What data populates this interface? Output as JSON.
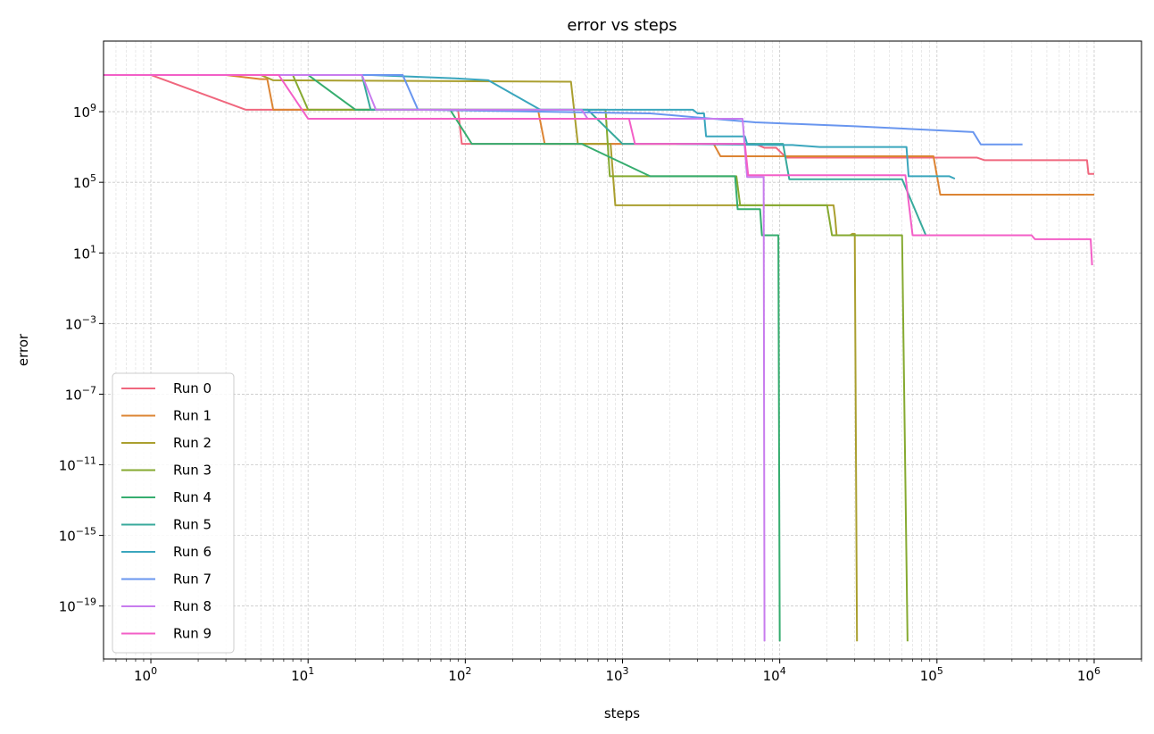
{
  "chart_data": {
    "type": "line",
    "title": "error vs steps",
    "xlabel": "steps",
    "ylabel": "error",
    "xscale": "log",
    "yscale": "log",
    "xlim": [
      0.5,
      2000000
    ],
    "ylim": [
      1e-22,
      10000000000000.0
    ],
    "x_ticks": [
      {
        "value": 1,
        "mant": "10",
        "exp": "0"
      },
      {
        "value": 10,
        "mant": "10",
        "exp": "1"
      },
      {
        "value": 100,
        "mant": "10",
        "exp": "2"
      },
      {
        "value": 1000,
        "mant": "10",
        "exp": "3"
      },
      {
        "value": 10000,
        "mant": "10",
        "exp": "4"
      },
      {
        "value": 100000,
        "mant": "10",
        "exp": "5"
      },
      {
        "value": 1000000,
        "mant": "10",
        "exp": "6"
      }
    ],
    "y_ticks": [
      {
        "value": 1000000000.0,
        "mant": "10",
        "exp": "9"
      },
      {
        "value": 100000.0,
        "mant": "10",
        "exp": "5"
      },
      {
        "value": 10,
        "mant": "10",
        "exp": "1"
      },
      {
        "value": 0.001,
        "mant": "10",
        "exp": "−3"
      },
      {
        "value": 1e-07,
        "mant": "10",
        "exp": "−7"
      },
      {
        "value": 1e-11,
        "mant": "10",
        "exp": "−11"
      },
      {
        "value": 1e-15,
        "mant": "10",
        "exp": "−15"
      },
      {
        "value": 1e-19,
        "mant": "10",
        "exp": "−19"
      }
    ],
    "grid": true,
    "legend_position": "lower-left",
    "series": [
      {
        "name": "Run 0",
        "color": "#f0677e",
        "points": [
          [
            0.5,
            120000000000.0
          ],
          [
            1,
            120000000000.0
          ],
          [
            4,
            1300000000.0
          ],
          [
            90,
            1300000000.0
          ],
          [
            95,
            15000000.0
          ],
          [
            3000,
            15000000.0
          ],
          [
            7000,
            15000000.0
          ],
          [
            8000,
            9000000.0
          ],
          [
            9500,
            9000000.0
          ],
          [
            11000,
            2500000.0
          ],
          [
            180000,
            2500000.0
          ],
          [
            200000,
            1800000.0
          ],
          [
            900000,
            1800000.0
          ],
          [
            920000,
            300000.0
          ],
          [
            1000000,
            300000.0
          ]
        ]
      },
      {
        "name": "Run 1",
        "color": "#dc8433",
        "points": [
          [
            0.5,
            120000000000.0
          ],
          [
            3,
            120000000000.0
          ],
          [
            5,
            70000000000.0
          ],
          [
            5.5,
            70000000000.0
          ],
          [
            6,
            1300000000.0
          ],
          [
            290,
            1300000000.0
          ],
          [
            320,
            15000000.0
          ],
          [
            3800,
            15000000.0
          ],
          [
            4200,
            3000000.0
          ],
          [
            95000,
            3000000.0
          ],
          [
            105000,
            20000.0
          ],
          [
            1000000,
            20000.0
          ]
        ]
      },
      {
        "name": "Run 2",
        "color": "#aa9f2f",
        "points": [
          [
            0.5,
            120000000000.0
          ],
          [
            5,
            120000000000.0
          ],
          [
            6,
            60000000000.0
          ],
          [
            470,
            50000000000.0
          ],
          [
            520,
            15000000.0
          ],
          [
            840,
            15000000.0
          ],
          [
            900,
            5000.0
          ],
          [
            5500,
            5000.0
          ],
          [
            22000,
            5000.0
          ],
          [
            22500,
            1000.0
          ],
          [
            23000,
            100.0
          ],
          [
            28000,
            100.0
          ],
          [
            29000,
            120.0
          ],
          [
            30000,
            120.0
          ],
          [
            31000,
            1e-21
          ]
        ]
      },
      {
        "name": "Run 3",
        "color": "#86aa31",
        "points": [
          [
            0.5,
            120000000000.0
          ],
          [
            8,
            120000000000.0
          ],
          [
            10,
            1300000000.0
          ],
          [
            780,
            1300000000.0
          ],
          [
            830,
            220000.0
          ],
          [
            5300,
            220000.0
          ],
          [
            5600,
            5000.0
          ],
          [
            20000,
            5000.0
          ],
          [
            21500,
            100.0
          ],
          [
            60000,
            100.0
          ],
          [
            65000,
            1e-21
          ]
        ]
      },
      {
        "name": "Run 4",
        "color": "#36ad6f",
        "points": [
          [
            0.5,
            120000000000.0
          ],
          [
            10,
            120000000000.0
          ],
          [
            20,
            1300000000.0
          ],
          [
            80,
            1300000000.0
          ],
          [
            110,
            15000000.0
          ],
          [
            550,
            15000000.0
          ],
          [
            1500,
            220000.0
          ],
          [
            5200,
            220000.0
          ],
          [
            5400,
            3000.0
          ],
          [
            7500,
            3000.0
          ],
          [
            7700,
            100.0
          ],
          [
            9800,
            100.0
          ],
          [
            10000,
            1e-21
          ]
        ]
      },
      {
        "name": "Run 5",
        "color": "#38aa9c",
        "points": [
          [
            0.5,
            120000000000.0
          ],
          [
            20,
            120000000000.0
          ],
          [
            22,
            120000000000.0
          ],
          [
            25,
            1300000000.0
          ],
          [
            550,
            1300000000.0
          ],
          [
            600,
            1300000000.0
          ],
          [
            1000,
            15000000.0
          ],
          [
            10500,
            15000000.0
          ],
          [
            11500,
            150000.0
          ],
          [
            60000,
            150000.0
          ],
          [
            85000,
            100.0
          ]
        ]
      },
      {
        "name": "Run 6",
        "color": "#3aa6bd",
        "points": [
          [
            0.5,
            120000000000.0
          ],
          [
            25,
            120000000000.0
          ],
          [
            80,
            80000000000.0
          ],
          [
            140,
            60000000000.0
          ],
          [
            300,
            1300000000.0
          ],
          [
            2800,
            1300000000.0
          ],
          [
            3000,
            800000000.0
          ],
          [
            3300,
            800000000.0
          ],
          [
            3400,
            40000000.0
          ],
          [
            6000,
            40000000.0
          ],
          [
            6200,
            15000000.0
          ],
          [
            2200,
            15000000.0
          ],
          [
            9000,
            13000000.0
          ],
          [
            12000,
            13000000.0
          ],
          [
            18000,
            10000000.0
          ],
          [
            64000,
            10000000.0
          ],
          [
            66000,
            220000.0
          ],
          [
            120000,
            220000.0
          ],
          [
            130000,
            160000.0
          ]
        ]
      },
      {
        "name": "Run 7",
        "color": "#6996ef",
        "points": [
          [
            0.5,
            120000000000.0
          ],
          [
            40,
            120000000000.0
          ],
          [
            50,
            1300000000.0
          ],
          [
            1500,
            800000000.0
          ],
          [
            7000,
            250000000.0
          ],
          [
            30000,
            150000000.0
          ],
          [
            170000,
            70000000.0
          ],
          [
            190000,
            14000000.0
          ],
          [
            350000,
            14000000.0
          ]
        ]
      },
      {
        "name": "Run 8",
        "color": "#c87cee",
        "points": [
          [
            0.5,
            120000000000.0
          ],
          [
            22,
            120000000000.0
          ],
          [
            27,
            1300000000.0
          ],
          [
            550,
            1300000000.0
          ],
          [
            600,
            400000000.0
          ],
          [
            1100,
            400000000.0
          ],
          [
            5800,
            400000000.0
          ],
          [
            6200,
            200000.0
          ],
          [
            7900,
            200000.0
          ],
          [
            8000,
            1e-21
          ]
        ]
      },
      {
        "name": "Run 9",
        "color": "#f35fc7",
        "points": [
          [
            0.5,
            120000000000.0
          ],
          [
            6.5,
            120000000000.0
          ],
          [
            10,
            400000000.0
          ],
          [
            1100,
            400000000.0
          ],
          [
            1200,
            15000000.0
          ],
          [
            6000,
            15000000.0
          ],
          [
            6300,
            250000.0
          ],
          [
            63000,
            250000.0
          ],
          [
            70000,
            100.0
          ],
          [
            400000,
            100.0
          ],
          [
            420000,
            60.0
          ],
          [
            950000,
            60.0
          ],
          [
            970000,
            2.0
          ]
        ]
      }
    ]
  }
}
